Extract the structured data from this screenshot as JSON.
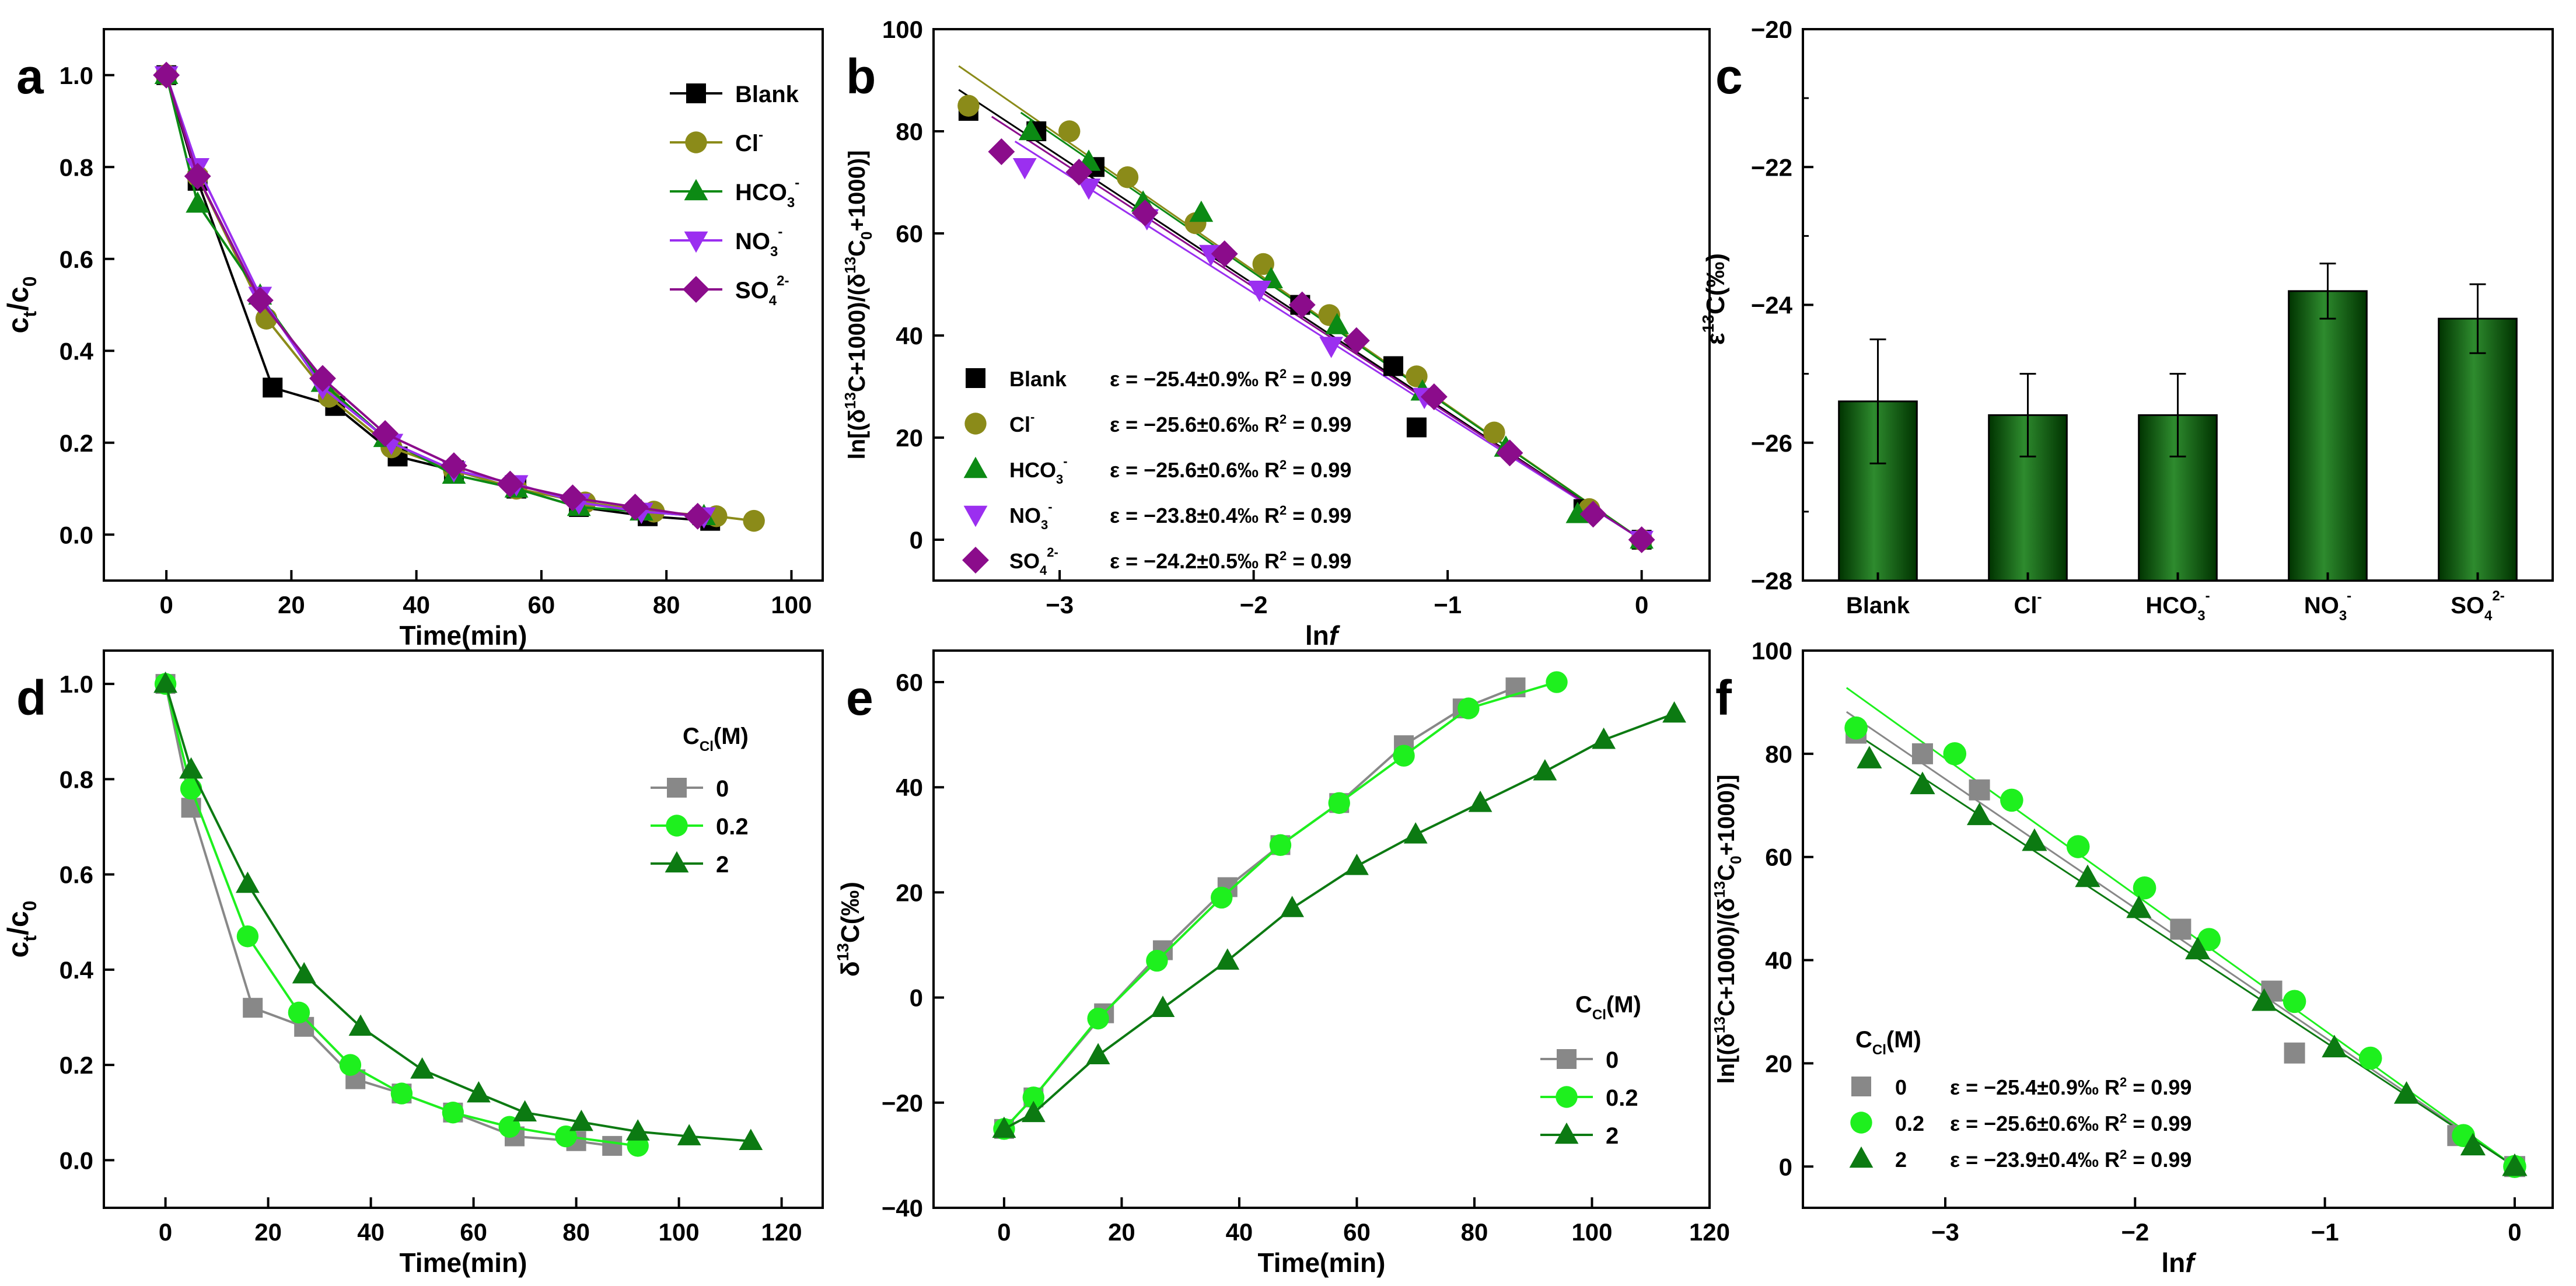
{
  "colors": {
    "blank": "#000000",
    "cl": "#8b8b19",
    "hco3": "#0c8a14",
    "no3": "#9b2ff0",
    "so4": "#8b0c8b",
    "gray": "#888888",
    "lime": "#1ef01e",
    "dkgreen": "#0c7a12",
    "bar_light": "#2e8b2e",
    "bar_dark": "#003300"
  },
  "chart_data": [
    {
      "id": "a",
      "type": "line",
      "panel_label": "a",
      "xlabel": "Time(min)",
      "xlim": [
        -10,
        105
      ],
      "ylim": [
        -0.1,
        1.1
      ],
      "xticks": [
        0,
        20,
        40,
        60,
        80,
        100
      ],
      "xtick_labels": [
        "0",
        "20",
        "40",
        "60",
        "80",
        "100"
      ],
      "yticks": [
        0.0,
        0.2,
        0.4,
        0.6,
        0.8,
        1.0
      ],
      "ytick_labels": [
        "0.0",
        "0.2",
        "0.4",
        "0.6",
        "0.8",
        "1.0"
      ],
      "series": [
        {
          "name": "Blank",
          "ion": "",
          "sup": "",
          "sub": "",
          "marker": "square",
          "color": "#000000",
          "x": [
            0,
            5,
            17,
            27,
            37,
            46,
            56,
            66,
            77,
            87
          ],
          "y": [
            1.0,
            0.77,
            0.32,
            0.28,
            0.17,
            0.14,
            0.1,
            0.06,
            0.04,
            0.03
          ]
        },
        {
          "name": "Cl",
          "ion": "Cl",
          "sup": "-",
          "sub": "",
          "marker": "circle",
          "color": "#8b8b19",
          "x": [
            0,
            5,
            16,
            26,
            36,
            46,
            56,
            67,
            78,
            88,
            94
          ],
          "y": [
            1.0,
            0.78,
            0.47,
            0.3,
            0.19,
            0.14,
            0.1,
            0.07,
            0.05,
            0.04,
            0.03
          ]
        },
        {
          "name": "HCO3",
          "ion": "HCO",
          "sup": "-",
          "sub": "3",
          "marker": "triangle",
          "color": "#0c8a14",
          "x": [
            0,
            5,
            15,
            25,
            35,
            46,
            56,
            66,
            76,
            86
          ],
          "y": [
            1.0,
            0.72,
            0.52,
            0.33,
            0.21,
            0.13,
            0.1,
            0.06,
            0.05,
            0.04
          ]
        },
        {
          "name": "NO3",
          "ion": "NO",
          "sup": "-",
          "sub": "3",
          "marker": "triangle-down",
          "color": "#9b2ff0",
          "x": [
            0,
            5,
            15,
            25,
            36,
            46,
            56,
            66,
            76,
            86
          ],
          "y": [
            1.0,
            0.8,
            0.52,
            0.32,
            0.2,
            0.14,
            0.11,
            0.07,
            0.05,
            0.04
          ]
        },
        {
          "name": "SO4",
          "ion": "SO",
          "sup": "2-",
          "sub": "4",
          "marker": "diamond",
          "color": "#8b0c8b",
          "x": [
            0,
            5,
            15,
            25,
            35,
            46,
            55,
            65,
            75,
            85
          ],
          "y": [
            1.0,
            0.78,
            0.51,
            0.34,
            0.22,
            0.15,
            0.11,
            0.08,
            0.06,
            0.04
          ]
        }
      ]
    },
    {
      "id": "b",
      "type": "scatter",
      "panel_label": "b",
      "xlabel": "ln f",
      "xlim": [
        -3.65,
        0.35
      ],
      "ylim": [
        -8,
        100
      ],
      "xticks": [
        -3,
        -2,
        -1,
        0
      ],
      "xtick_labels": [
        "−3",
        "−2",
        "−1",
        "0"
      ],
      "yticks": [
        0,
        20,
        40,
        60,
        80,
        100
      ],
      "ytick_labels": [
        "0",
        "20",
        "40",
        "60",
        "80",
        "100"
      ],
      "series": [
        {
          "name": "Blank",
          "ion": "",
          "sup": "",
          "sub": "",
          "marker": "square",
          "color": "#000000",
          "eq": "ε = −25.4±0.9‰ R",
          "r2": "2",
          "r2val": " = 0.99",
          "slope": -25.4,
          "x": [
            -3.47,
            -3.12,
            -2.82,
            -1.76,
            -1.28,
            -1.16,
            -0.3,
            0.0
          ],
          "y": [
            84,
            80,
            73,
            46,
            34,
            22,
            6,
            0
          ]
        },
        {
          "name": "Cl",
          "ion": "Cl",
          "sup": "-",
          "sub": "",
          "marker": "circle",
          "color": "#8b8b19",
          "eq": "ε = −25.6±0.6‰ R",
          "r2": "2",
          "r2val": " = 0.99",
          "slope": -25.6,
          "x": [
            -3.47,
            -2.95,
            -2.65,
            -2.3,
            -1.95,
            -1.61,
            -1.16,
            -0.76,
            -0.27,
            0.0
          ],
          "y": [
            85,
            80,
            71,
            62,
            54,
            44,
            32,
            21,
            6,
            0
          ]
        },
        {
          "name": "HCO3",
          "ion": "HCO",
          "sup": "-",
          "sub": "3",
          "marker": "triangle",
          "color": "#0c8a14",
          "x": [
            -3.15,
            -2.85,
            -2.57,
            -2.27,
            -1.91,
            -1.57,
            -1.13,
            -0.7,
            -0.33,
            0.0
          ],
          "eq": "ε = −25.6±0.6‰ R",
          "r2": "2",
          "r2val": " = 0.99",
          "slope": -25.6,
          "y": [
            80,
            74,
            66,
            64,
            51,
            42,
            29,
            18,
            5,
            0
          ]
        },
        {
          "name": "NO3",
          "ion": "NO",
          "sup": "-",
          "sub": "3",
          "marker": "triangle-down",
          "color": "#9b2ff0",
          "eq": "ε = −23.8±0.4‰ R",
          "r2": "2",
          "r2val": " = 0.99",
          "slope": -23.8,
          "x": [
            -3.18,
            -2.85,
            -2.55,
            -2.22,
            -1.97,
            -1.6,
            -1.12,
            0.0
          ],
          "y": [
            73,
            69,
            63,
            56,
            49,
            38,
            28,
            0
          ]
        },
        {
          "name": "SO4",
          "ion": "SO",
          "sup": "2-",
          "sub": "4",
          "marker": "diamond",
          "color": "#8b0c8b",
          "eq": "ε = −24.2±0.5‰ R",
          "r2": "2",
          "r2val": " = 0.99",
          "slope": -24.2,
          "x": [
            -3.3,
            -2.9,
            -2.56,
            -2.15,
            -1.75,
            -1.47,
            -1.07,
            -0.68,
            -0.25,
            0.0
          ],
          "y": [
            76,
            72,
            64,
            56,
            46,
            39,
            28,
            17,
            5,
            0
          ]
        }
      ]
    },
    {
      "id": "c",
      "type": "bar",
      "panel_label": "c",
      "ylabel": "ε 13 C(‰)",
      "ylim": [
        -28,
        -20
      ],
      "yticks": [
        -28,
        -26,
        -24,
        -22,
        -20
      ],
      "ytick_labels": [
        "−28",
        "−26",
        "−24",
        "−22",
        "−20"
      ],
      "categories": [
        {
          "name": "Blank",
          "ion": "Blank",
          "sup": "",
          "sub": ""
        },
        {
          "name": "Cl",
          "ion": "Cl",
          "sup": "-",
          "sub": ""
        },
        {
          "name": "HCO3",
          "ion": "HCO",
          "sup": "-",
          "sub": "3"
        },
        {
          "name": "NO3",
          "ion": "NO",
          "sup": "-",
          "sub": "3"
        },
        {
          "name": "SO4",
          "ion": "SO",
          "sup": "2-",
          "sub": "4"
        }
      ],
      "values": [
        -25.4,
        -25.6,
        -25.6,
        -23.8,
        -24.2
      ],
      "errors": [
        0.9,
        0.6,
        0.6,
        0.4,
        0.5
      ]
    },
    {
      "id": "d",
      "type": "line",
      "panel_label": "d",
      "xlabel": "Time(min)",
      "legend_title": "C",
      "legend_title_sub": "Cl",
      "legend_title_unit": "(M)",
      "xlim": [
        -12,
        128
      ],
      "ylim": [
        -0.1,
        1.07
      ],
      "xticks": [
        0,
        20,
        40,
        60,
        80,
        100,
        120
      ],
      "xtick_labels": [
        "0",
        "20",
        "40",
        "60",
        "80",
        "100",
        "120"
      ],
      "yticks": [
        0.0,
        0.2,
        0.4,
        0.6,
        0.8,
        1.0
      ],
      "ytick_labels": [
        "0.0",
        "0.2",
        "0.4",
        "0.6",
        "0.8",
        "1.0"
      ],
      "series": [
        {
          "name": "0",
          "marker": "square",
          "color": "#888888",
          "x": [
            0,
            5,
            17,
            27,
            37,
            46,
            56,
            68,
            80,
            87
          ],
          "y": [
            1.0,
            0.74,
            0.32,
            0.28,
            0.17,
            0.14,
            0.1,
            0.05,
            0.04,
            0.03
          ]
        },
        {
          "name": "0.2",
          "marker": "circle",
          "color": "#1ef01e",
          "x": [
            0,
            5,
            16,
            26,
            36,
            46,
            56,
            67,
            78,
            92
          ],
          "y": [
            1.0,
            0.78,
            0.47,
            0.31,
            0.2,
            0.14,
            0.1,
            0.07,
            0.05,
            0.03
          ]
        },
        {
          "name": "2",
          "marker": "triangle",
          "color": "#0c7a12",
          "x": [
            0,
            5,
            16,
            27,
            38,
            50,
            61,
            70,
            81,
            92,
            102,
            114
          ],
          "y": [
            1.0,
            0.82,
            0.58,
            0.39,
            0.28,
            0.19,
            0.14,
            0.1,
            0.08,
            0.06,
            0.05,
            0.04
          ]
        }
      ]
    },
    {
      "id": "e",
      "type": "line",
      "panel_label": "e",
      "xlabel": "Time(min)",
      "ylabel": "δ 13 C(‰)",
      "legend_title": "C",
      "legend_title_sub": "Cl",
      "legend_title_unit": "(M)",
      "xlim": [
        -12,
        120
      ],
      "ylim": [
        -40,
        66
      ],
      "xticks": [
        0,
        20,
        40,
        60,
        80,
        100,
        120
      ],
      "xtick_labels": [
        "0",
        "20",
        "40",
        "60",
        "80",
        "100",
        "120"
      ],
      "yticks": [
        -40,
        -20,
        0,
        20,
        40,
        60
      ],
      "ytick_labels": [
        "−40",
        "−20",
        "0",
        "20",
        "40",
        "60"
      ],
      "series": [
        {
          "name": "0",
          "marker": "square",
          "color": "#888888",
          "x": [
            0,
            5,
            17,
            27,
            38,
            47,
            57,
            68,
            78,
            87
          ],
          "y": [
            -25,
            -19,
            -3,
            9,
            21,
            29,
            37,
            48,
            55,
            59
          ]
        },
        {
          "name": "0.2",
          "marker": "circle",
          "color": "#1ef01e",
          "x": [
            0,
            5,
            16,
            26,
            37,
            47,
            57,
            68,
            79,
            94
          ],
          "y": [
            -25,
            -19,
            -4,
            7,
            19,
            29,
            37,
            46,
            55,
            60
          ]
        },
        {
          "name": "2",
          "marker": "triangle",
          "color": "#0c7a12",
          "x": [
            0,
            5,
            16,
            27,
            38,
            49,
            60,
            70,
            81,
            92,
            102,
            114
          ],
          "y": [
            -25,
            -22,
            -11,
            -2,
            7,
            17,
            25,
            31,
            37,
            43,
            49,
            54
          ]
        }
      ]
    },
    {
      "id": "f",
      "type": "scatter",
      "panel_label": "f",
      "xlabel": "ln f",
      "legend_title": "C",
      "legend_title_sub": "Cl",
      "legend_title_unit": "(M)",
      "xlim": [
        -3.75,
        0.2
      ],
      "ylim": [
        -8,
        100
      ],
      "xticks": [
        -3,
        -2,
        -1,
        0
      ],
      "xtick_labels": [
        "−3",
        "−2",
        "−1",
        "0"
      ],
      "yticks": [
        0,
        20,
        40,
        60,
        80,
        100
      ],
      "ytick_labels": [
        "0",
        "20",
        "40",
        "60",
        "80",
        "100"
      ],
      "series": [
        {
          "name": "0",
          "marker": "square",
          "color": "#888888",
          "eq": "ε = −25.4±0.9‰ R",
          "r2": "2",
          "r2val": " = 0.99",
          "slope": -25.4,
          "x": [
            -3.47,
            -3.12,
            -2.82,
            -1.76,
            -1.28,
            -1.16,
            -0.3,
            0.0
          ],
          "y": [
            84,
            80,
            73,
            46,
            34,
            22,
            6,
            0
          ]
        },
        {
          "name": "0.2",
          "marker": "circle",
          "color": "#1ef01e",
          "eq": "ε = −25.6±0.6‰ R",
          "r2": "2",
          "r2val": " = 0.99",
          "slope": -25.6,
          "x": [
            -3.47,
            -2.95,
            -2.65,
            -2.3,
            -1.95,
            -1.61,
            -1.16,
            -0.76,
            -0.27,
            0.0
          ],
          "y": [
            85,
            80,
            71,
            62,
            54,
            44,
            32,
            21,
            6,
            0
          ]
        },
        {
          "name": "2",
          "marker": "triangle",
          "color": "#0c7a12",
          "eq": "ε = −23.9±0.4‰ R",
          "r2": "2",
          "r2val": " = 0.99",
          "slope": -23.9,
          "x": [
            -3.4,
            -3.12,
            -2.82,
            -2.53,
            -2.25,
            -1.98,
            -1.67,
            -1.32,
            -0.95,
            -0.57,
            -0.22,
            0.0
          ],
          "y": [
            79,
            74,
            68,
            63,
            56,
            50,
            42,
            32,
            23,
            14,
            4,
            0
          ]
        }
      ]
    }
  ]
}
